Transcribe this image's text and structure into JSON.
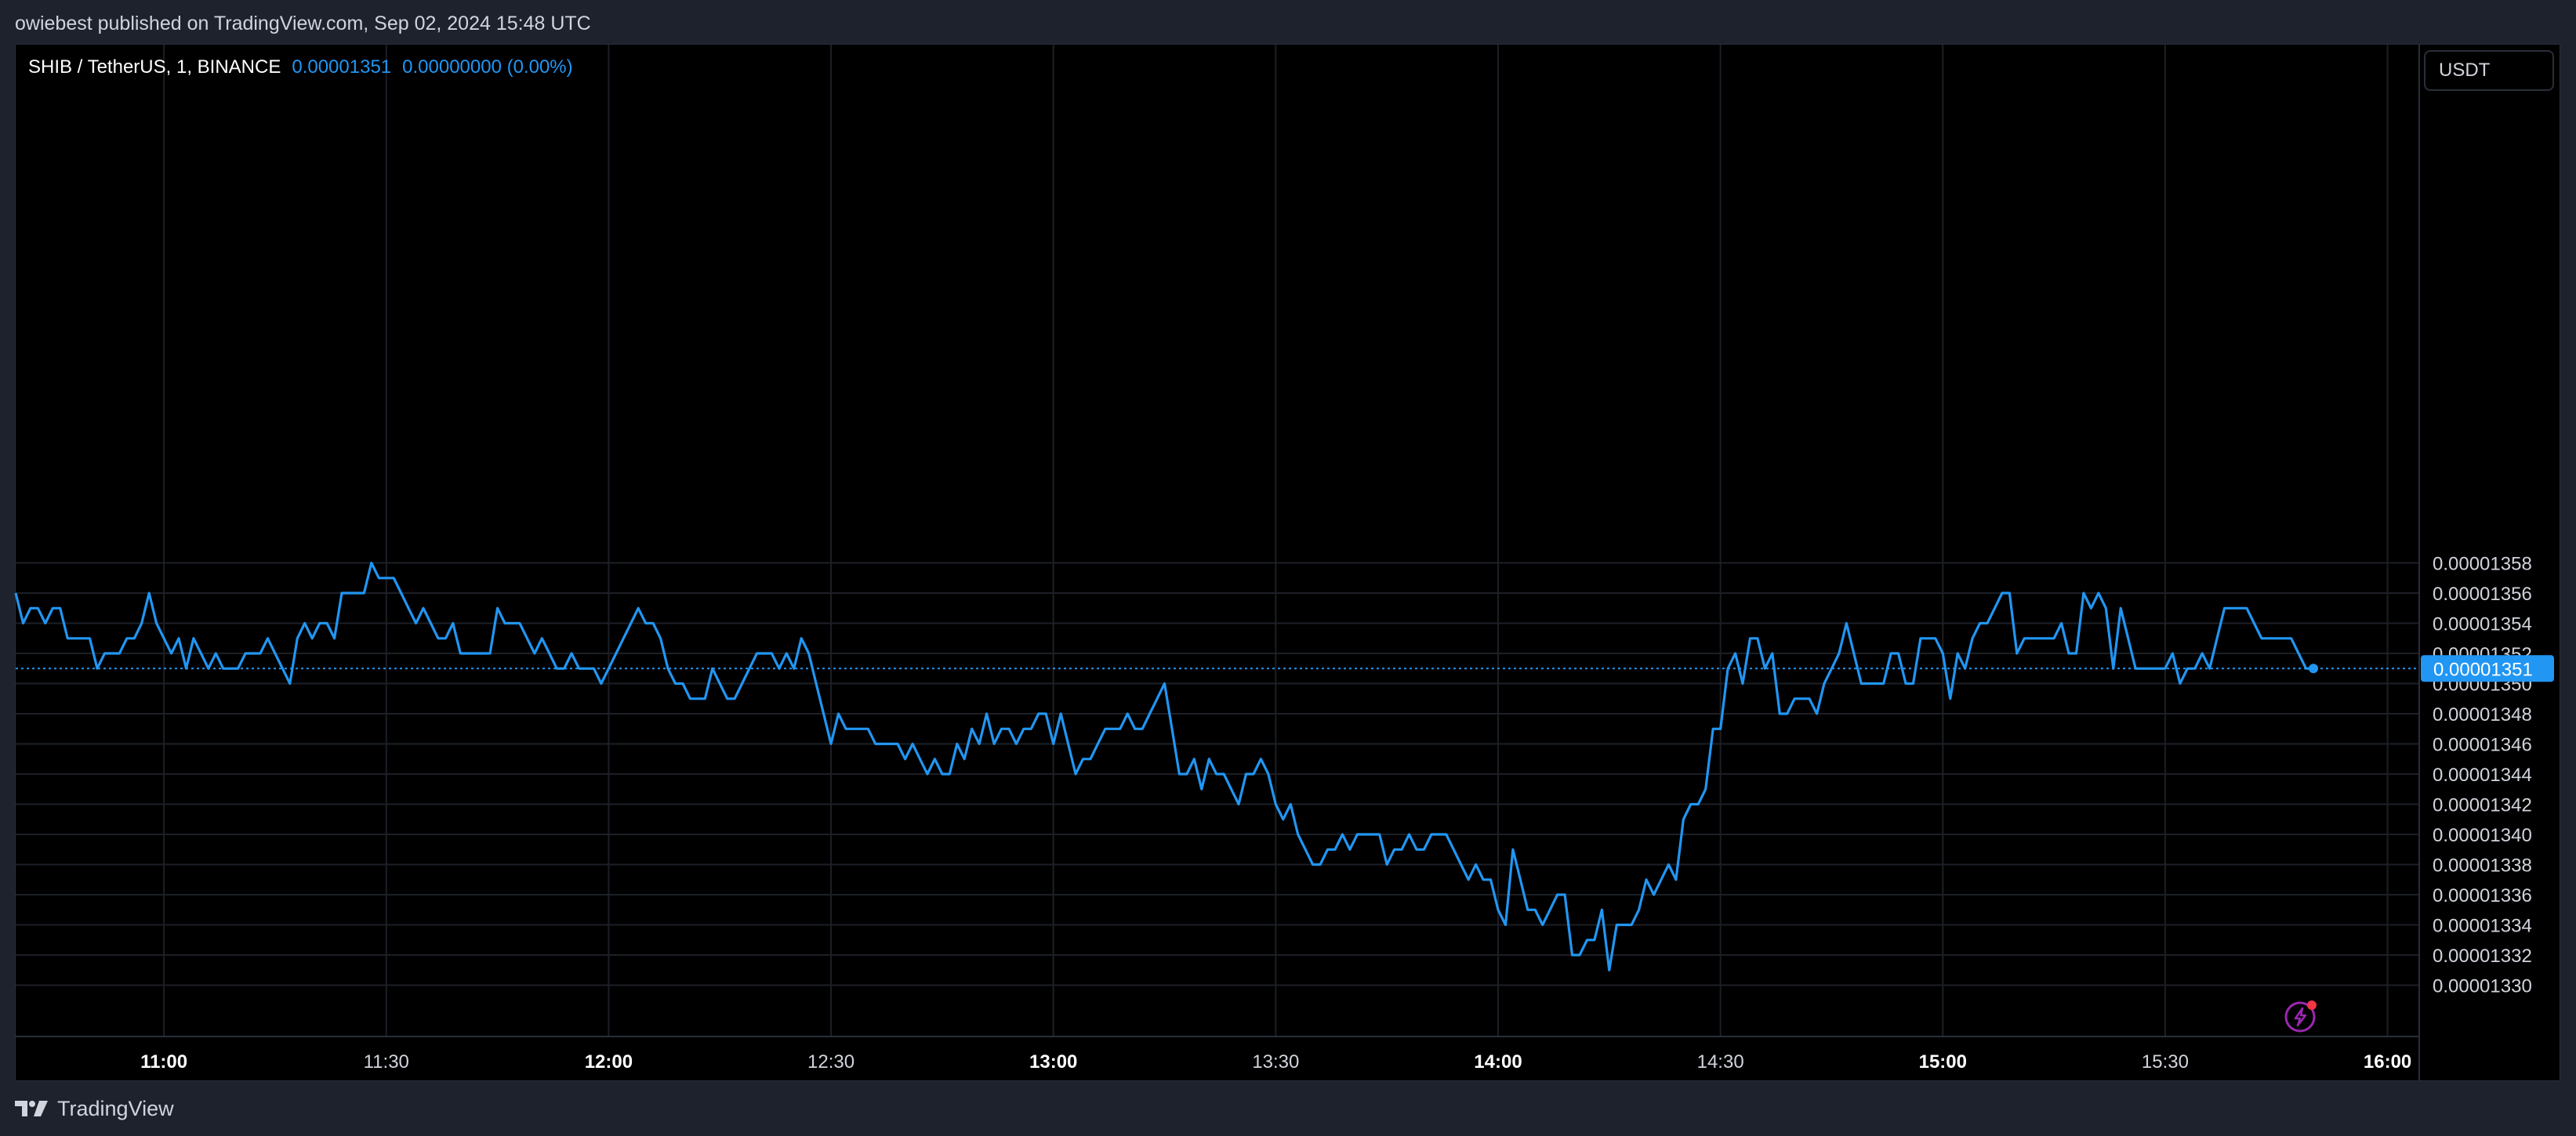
{
  "header": {
    "published_text": "owiebest published on TradingView.com, Sep 02, 2024 15:48 UTC"
  },
  "legend": {
    "symbol_text": "SHIB / TetherUS, 1, BINANCE",
    "last_price": "0.00001351",
    "change": "0.00000000 (0.00%)"
  },
  "currency_button": {
    "label": "USDT"
  },
  "footer": {
    "brand": "TradingView",
    "logo_icon": "tradingview-logo-icon"
  },
  "colors": {
    "line": "#2196f3",
    "background": "#000000",
    "frame": "#1e222d",
    "grid": "#1c1f26",
    "text": "#d1d4dc",
    "price_badge": "#2196f3",
    "replay_icon": "#9c27b0",
    "replay_dot": "#f23645"
  },
  "icons": {
    "replay": "lightning-icon"
  },
  "chart_data": {
    "type": "line",
    "series": [
      {
        "name": "",
        "unit": "×1e-8 USDT",
        "values": [
          1356,
          1354,
          1355,
          1355,
          1354,
          1355,
          1355,
          1353,
          1353,
          1353,
          1353,
          1351,
          1352,
          1352,
          1352,
          1353,
          1353,
          1354,
          1356,
          1354,
          1353,
          1352,
          1353,
          1351,
          1353,
          1352,
          1351,
          1352,
          1351,
          1351,
          1351,
          1352,
          1352,
          1352,
          1353,
          1352,
          1351,
          1350,
          1353,
          1354,
          1353,
          1354,
          1354,
          1353,
          1356,
          1356,
          1356,
          1356,
          1358,
          1357,
          1357,
          1357,
          1356,
          1355,
          1354,
          1355,
          1354,
          1353,
          1353,
          1354,
          1352,
          1352,
          1352,
          1352,
          1352,
          1355,
          1354,
          1354,
          1354,
          1353,
          1352,
          1353,
          1352,
          1351,
          1351,
          1352,
          1351,
          1351,
          1351,
          1350,
          1351,
          1352,
          1353,
          1354,
          1355,
          1354,
          1354,
          1353,
          1351,
          1350,
          1350,
          1349,
          1349,
          1349,
          1351,
          1350,
          1349,
          1349,
          1350,
          1351,
          1352,
          1352,
          1352,
          1351,
          1352,
          1351,
          1353,
          1352,
          1350,
          1348,
          1346,
          1348,
          1347,
          1347,
          1347,
          1347,
          1346,
          1346,
          1346,
          1346,
          1345,
          1346,
          1345,
          1344,
          1345,
          1344,
          1344,
          1346,
          1345,
          1347,
          1346,
          1348,
          1346,
          1347,
          1347,
          1346,
          1347,
          1347,
          1348,
          1348,
          1346,
          1348,
          1346,
          1344,
          1345,
          1345,
          1346,
          1347,
          1347,
          1347,
          1348,
          1347,
          1347,
          1348,
          1349,
          1350,
          1347,
          1344,
          1344,
          1345,
          1343,
          1345,
          1344,
          1344,
          1343,
          1342,
          1344,
          1344,
          1345,
          1344,
          1342,
          1341,
          1342,
          1340,
          1339,
          1338,
          1338,
          1339,
          1339,
          1340,
          1339,
          1340,
          1340,
          1340,
          1340,
          1338,
          1339,
          1339,
          1340,
          1339,
          1339,
          1340,
          1340,
          1340,
          1339,
          1338,
          1337,
          1338,
          1337,
          1337,
          1335,
          1334,
          1339,
          1337,
          1335,
          1335,
          1334,
          1335,
          1336,
          1336,
          1332,
          1332,
          1333,
          1333,
          1335,
          1331,
          1334,
          1334,
          1334,
          1335,
          1337,
          1336,
          1337,
          1338,
          1337,
          1341,
          1342,
          1342,
          1343,
          1347,
          1347,
          1351,
          1352,
          1350,
          1353,
          1353,
          1351,
          1352,
          1348,
          1348,
          1349,
          1349,
          1349,
          1348,
          1350,
          1351,
          1352,
          1354,
          1352,
          1350,
          1350,
          1350,
          1350,
          1352,
          1352,
          1350,
          1350,
          1353,
          1353,
          1353,
          1352,
          1349,
          1352,
          1351,
          1353,
          1354,
          1354,
          1355,
          1356,
          1356,
          1352,
          1353,
          1353,
          1353,
          1353,
          1353,
          1354,
          1352,
          1352,
          1356,
          1355,
          1356,
          1355,
          1351,
          1355,
          1353,
          1351,
          1351,
          1351,
          1351,
          1351,
          1352,
          1350,
          1351,
          1351,
          1352,
          1351,
          1353,
          1355,
          1355,
          1355,
          1355,
          1354,
          1353,
          1353,
          1353,
          1353,
          1353,
          1352,
          1351,
          1351
        ]
      }
    ],
    "x_start": "10:40",
    "x_interval_minutes": 1,
    "x_tick_labels": [
      "11:00",
      "11:30",
      "12:00",
      "12:30",
      "13:00",
      "13:30",
      "14:00",
      "14:30",
      "15:00",
      "15:30",
      "16:00"
    ],
    "y_tick_labels": [
      "0.00001358",
      "0.00001356",
      "0.00001354",
      "0.00001352",
      "0.00001350",
      "0.00001348",
      "0.00001346",
      "0.00001344",
      "0.00001342",
      "0.00001340",
      "0.00001338",
      "0.00001336",
      "0.00001334",
      "0.00001332",
      "0.00001330"
    ],
    "ylim": [
      1328,
      1361
    ],
    "last_value_label": "0.00001351",
    "grid": true,
    "axis_position": "right"
  }
}
